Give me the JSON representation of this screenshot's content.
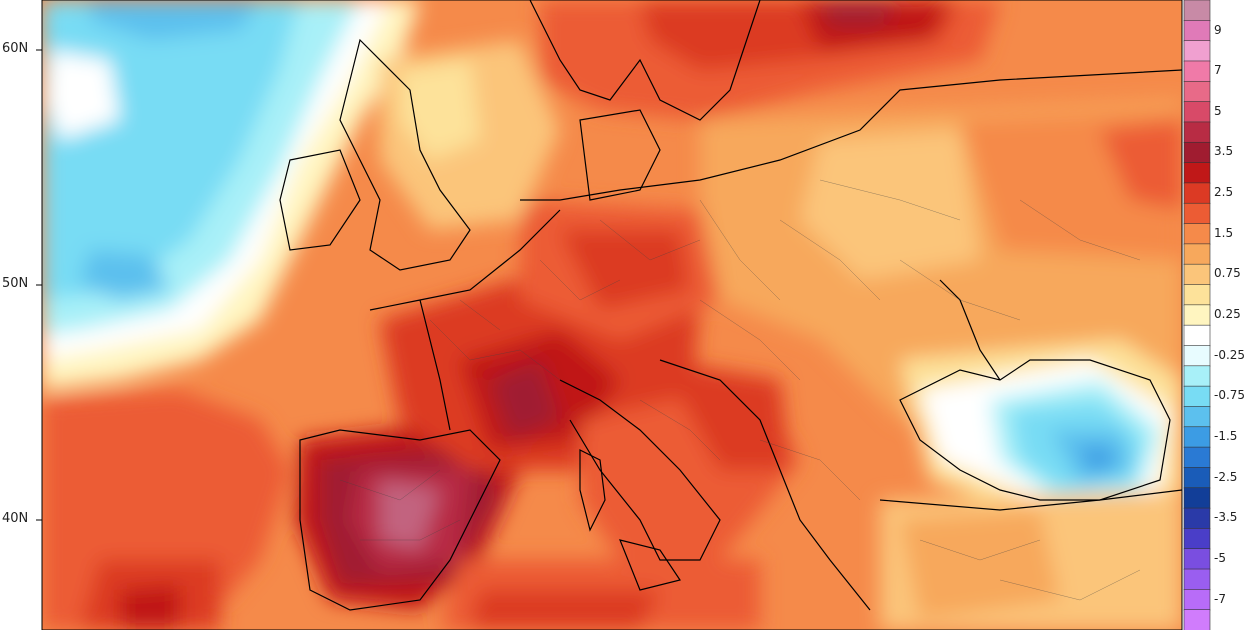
{
  "latitude_labels": [
    {
      "text": "60N",
      "lat": 60
    },
    {
      "text": "50N",
      "lat": 50
    },
    {
      "text": "40N",
      "lat": 40
    }
  ],
  "legend": {
    "items": [
      {
        "label": "",
        "color": "#c88aa6"
      },
      {
        "label": "9",
        "color": "#e07ab8"
      },
      {
        "label": "",
        "color": "#f0a0d0"
      },
      {
        "label": "7",
        "color": "#f07aa8"
      },
      {
        "label": "",
        "color": "#e86a88"
      },
      {
        "label": "5",
        "color": "#d84a68"
      },
      {
        "label": "",
        "color": "#b82c44"
      },
      {
        "label": "3.5",
        "color": "#a01c30"
      },
      {
        "label": "",
        "color": "#c01818"
      },
      {
        "label": "2.5",
        "color": "#dc3a24"
      },
      {
        "label": "",
        "color": "#ec5c34"
      },
      {
        "label": "1.5",
        "color": "#f58a4a"
      },
      {
        "label": "",
        "color": "#f7a85c"
      },
      {
        "label": "0.75",
        "color": "#fbc57a"
      },
      {
        "label": "",
        "color": "#fde29a"
      },
      {
        "label": "0.25",
        "color": "#fff5c0"
      },
      {
        "label": "",
        "color": "#ffffff"
      },
      {
        "label": "-0.25",
        "color": "#e8fcff"
      },
      {
        "label": "",
        "color": "#a8f0f8"
      },
      {
        "label": "-0.75",
        "color": "#78dcf4"
      },
      {
        "label": "",
        "color": "#5cc0ee"
      },
      {
        "label": "-1.5",
        "color": "#3c9ce4"
      },
      {
        "label": "",
        "color": "#2a7ad4"
      },
      {
        "label": "-2.5",
        "color": "#1a5cb8"
      },
      {
        "label": "",
        "color": "#123e98"
      },
      {
        "label": "-3.5",
        "color": "#2a3aa8"
      },
      {
        "label": "",
        "color": "#4a3ec8"
      },
      {
        "label": "-5",
        "color": "#7a4ee0"
      },
      {
        "label": "",
        "color": "#9a5ef0"
      },
      {
        "label": "-7",
        "color": "#b86cf8"
      },
      {
        "label": "",
        "color": "#d07cfc"
      }
    ]
  },
  "colors": {
    "land_border": "#000000",
    "region_border": "#444444",
    "frame": "#000000"
  }
}
